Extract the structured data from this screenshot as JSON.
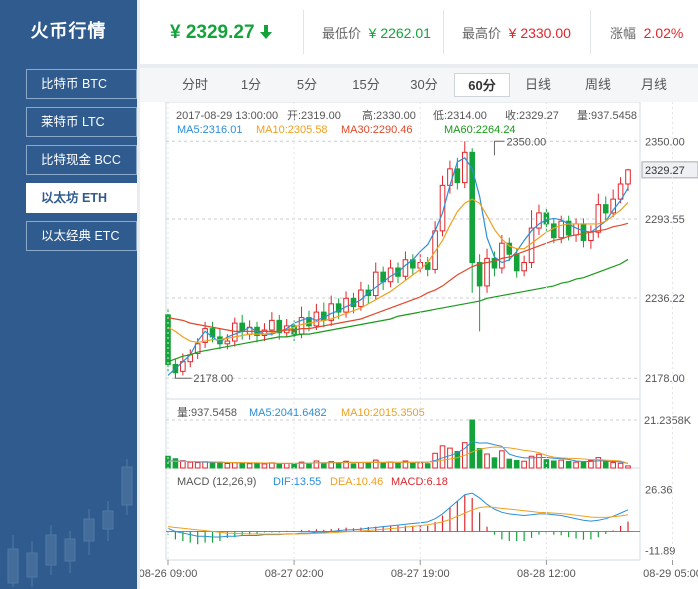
{
  "app": {
    "title": "火币行情"
  },
  "sidebar": {
    "items": [
      {
        "label": "比特币 BTC",
        "active": false
      },
      {
        "label": "莱特币 LTC",
        "active": false
      },
      {
        "label": "比特现金 BCC",
        "active": false
      },
      {
        "label": "以太坊 ETH",
        "active": true
      },
      {
        "label": "以太经典 ETC",
        "active": false
      }
    ]
  },
  "ticker": {
    "currency": "¥",
    "price": "2329.27",
    "direction_icon": "arrow-down-icon",
    "low_label": "最低价",
    "low_value": "¥ 2262.01",
    "high_label": "最高价",
    "high_value": "¥ 2330.00",
    "change_label": "涨幅",
    "change_value": "2.02%"
  },
  "tabs": [
    "分时",
    "1分",
    "5分",
    "15分",
    "30分",
    "60分",
    "日线",
    "周线",
    "月线"
  ],
  "active_tab": "60分",
  "colors": {
    "up": "#e0262c",
    "down": "#14a33a",
    "ma5": "#2a8fd8",
    "ma10": "#f0a01e",
    "ma30": "#e0492a",
    "ma60": "#1a9a1a",
    "dif": "#2a8fd8",
    "dea": "#f0a01e",
    "sidebar": "#2f5b8e"
  },
  "chart_data": [
    {
      "type": "candlestick",
      "info": {
        "time": "2017-08-29 13:00:00",
        "open": "开:2319.00",
        "high": "高:2330.00",
        "low": "低:2314.00",
        "close": "收:2329.27",
        "volume": "量:937.5458"
      },
      "ma_labels": [
        {
          "name": "MA5",
          "text": "MA5:2316.01"
        },
        {
          "name": "MA10",
          "text": "MA10:2305.58"
        },
        {
          "name": "MA30",
          "text": "MA30:2290.46"
        },
        {
          "name": "MA60",
          "text": "MA60:2264.24"
        }
      ],
      "y_ticks": [
        2350.0,
        2293.55,
        2236.22,
        2178.0
      ],
      "y_tick_labels": [
        "2350.00",
        "2293.55",
        "2236.22",
        "2178.00"
      ],
      "ylim": [
        2168,
        2364
      ],
      "last_price_label": "2329.27",
      "max_annotation": {
        "value": 2350.0,
        "label": "2350.00",
        "index": 44
      },
      "min_annotation": {
        "value": 2178.0,
        "label": "2178.00",
        "index": 1
      },
      "x_tick_labels": [
        {
          "label": "08-26 09:00",
          "index": 0
        },
        {
          "label": "08-27 02:00",
          "index": 17
        },
        {
          "label": "08-27 19:00",
          "index": 34
        },
        {
          "label": "08-28 12:00",
          "index": 51
        },
        {
          "label": "08-29 05:00",
          "index": 68
        }
      ],
      "ma_series": [
        {
          "name": "MA5",
          "values": [
            2180,
            2185,
            2190,
            2195,
            2205,
            2212,
            2208,
            2204,
            2208,
            2210,
            2212,
            2215,
            2212,
            2210,
            2210,
            2212,
            2214,
            2218,
            2220,
            2222,
            2220,
            2222,
            2225,
            2227,
            2230,
            2232,
            2235,
            2240,
            2244,
            2248,
            2252,
            2255,
            2260,
            2264,
            2270,
            2275,
            2285,
            2298,
            2318,
            2335,
            2338,
            2330,
            2310,
            2280,
            2266,
            2262,
            2264,
            2270,
            2278,
            2285,
            2290,
            2293,
            2294,
            2293,
            2290,
            2287,
            2285,
            2284,
            2288,
            2292,
            2300,
            2307,
            2316
          ]
        },
        {
          "name": "MA10",
          "values": [
            2215,
            2212,
            2208,
            2205,
            2204,
            2205,
            2206,
            2206,
            2207,
            2208,
            2209,
            2210,
            2210,
            2210,
            2211,
            2212,
            2213,
            2215,
            2217,
            2218,
            2219,
            2220,
            2221,
            2223,
            2225,
            2227,
            2229,
            2232,
            2235,
            2238,
            2241,
            2245,
            2249,
            2253,
            2257,
            2262,
            2270,
            2278,
            2289,
            2299,
            2305,
            2308,
            2305,
            2296,
            2286,
            2279,
            2274,
            2272,
            2272,
            2276,
            2280,
            2284,
            2287,
            2289,
            2290,
            2290,
            2290,
            2290,
            2290,
            2292,
            2296,
            2300,
            2305.58
          ]
        },
        {
          "name": "MA30",
          "values": [
            2222,
            2221,
            2220,
            2218,
            2217,
            2216,
            2215,
            2214,
            2213,
            2212,
            2212,
            2212,
            2212,
            2212,
            2212,
            2212,
            2213,
            2213,
            2214,
            2214,
            2215,
            2216,
            2217,
            2218,
            2219,
            2220,
            2221,
            2223,
            2225,
            2227,
            2229,
            2231,
            2233,
            2235,
            2237,
            2240,
            2242,
            2245,
            2249,
            2253,
            2256,
            2259,
            2261,
            2262,
            2263,
            2265,
            2266,
            2268,
            2270,
            2272,
            2274,
            2276,
            2278,
            2279,
            2281,
            2282,
            2283,
            2284,
            2285,
            2286,
            2288,
            2289,
            2290.46
          ]
        },
        {
          "name": "MA60",
          "values": [
            2190,
            2192,
            2194,
            2195,
            2197,
            2198,
            2199,
            2200,
            2201,
            2202,
            2203,
            2204,
            2205,
            2206,
            2207,
            2208,
            2208,
            2209,
            2210,
            2210,
            2211,
            2212,
            2213,
            2214,
            2215,
            2216,
            2217,
            2218,
            2219,
            2220,
            2221,
            2223,
            2224,
            2225,
            2226,
            2227,
            2228,
            2229,
            2230,
            2231,
            2232,
            2233,
            2234,
            2236,
            2237,
            2238,
            2239,
            2240,
            2241,
            2242,
            2243,
            2244,
            2245,
            2247,
            2248,
            2250,
            2251,
            2253,
            2255,
            2257,
            2259,
            2261,
            2264.24
          ]
        }
      ],
      "candles": [
        {
          "o": 2224,
          "c": 2188,
          "h": 2228,
          "l": 2183
        },
        {
          "o": 2188,
          "c": 2182,
          "h": 2192,
          "l": 2178
        },
        {
          "o": 2183,
          "c": 2190,
          "h": 2196,
          "l": 2180
        },
        {
          "o": 2190,
          "c": 2195,
          "h": 2199,
          "l": 2186
        },
        {
          "o": 2196,
          "c": 2203,
          "h": 2207,
          "l": 2192
        },
        {
          "o": 2204,
          "c": 2214,
          "h": 2219,
          "l": 2200
        },
        {
          "o": 2214,
          "c": 2208,
          "h": 2219,
          "l": 2204
        },
        {
          "o": 2208,
          "c": 2203,
          "h": 2214,
          "l": 2199
        },
        {
          "o": 2203,
          "c": 2205,
          "h": 2210,
          "l": 2199
        },
        {
          "o": 2205,
          "c": 2218,
          "h": 2222,
          "l": 2201
        },
        {
          "o": 2218,
          "c": 2212,
          "h": 2224,
          "l": 2206
        },
        {
          "o": 2210,
          "c": 2215,
          "h": 2220,
          "l": 2206
        },
        {
          "o": 2215,
          "c": 2209,
          "h": 2219,
          "l": 2204
        },
        {
          "o": 2209,
          "c": 2213,
          "h": 2218,
          "l": 2205
        },
        {
          "o": 2213,
          "c": 2220,
          "h": 2226,
          "l": 2209
        },
        {
          "o": 2220,
          "c": 2211,
          "h": 2224,
          "l": 2206
        },
        {
          "o": 2211,
          "c": 2216,
          "h": 2221,
          "l": 2208
        },
        {
          "o": 2216,
          "c": 2210,
          "h": 2220,
          "l": 2205
        },
        {
          "o": 2210,
          "c": 2222,
          "h": 2230,
          "l": 2207
        },
        {
          "o": 2222,
          "c": 2216,
          "h": 2227,
          "l": 2212
        },
        {
          "o": 2216,
          "c": 2226,
          "h": 2232,
          "l": 2213
        },
        {
          "o": 2226,
          "c": 2220,
          "h": 2233,
          "l": 2215
        },
        {
          "o": 2220,
          "c": 2232,
          "h": 2238,
          "l": 2216
        },
        {
          "o": 2232,
          "c": 2226,
          "h": 2236,
          "l": 2221
        },
        {
          "o": 2226,
          "c": 2236,
          "h": 2241,
          "l": 2222
        },
        {
          "o": 2236,
          "c": 2230,
          "h": 2240,
          "l": 2225
        },
        {
          "o": 2230,
          "c": 2242,
          "h": 2248,
          "l": 2227
        },
        {
          "o": 2242,
          "c": 2238,
          "h": 2246,
          "l": 2232
        },
        {
          "o": 2238,
          "c": 2255,
          "h": 2262,
          "l": 2235
        },
        {
          "o": 2255,
          "c": 2248,
          "h": 2259,
          "l": 2242
        },
        {
          "o": 2248,
          "c": 2258,
          "h": 2264,
          "l": 2244
        },
        {
          "o": 2258,
          "c": 2252,
          "h": 2262,
          "l": 2247
        },
        {
          "o": 2252,
          "c": 2264,
          "h": 2270,
          "l": 2249
        },
        {
          "o": 2264,
          "c": 2258,
          "h": 2268,
          "l": 2253
        },
        {
          "o": 2258,
          "c": 2262,
          "h": 2268,
          "l": 2254
        },
        {
          "o": 2262,
          "c": 2257,
          "h": 2266,
          "l": 2252
        },
        {
          "o": 2257,
          "c": 2285,
          "h": 2292,
          "l": 2254
        },
        {
          "o": 2285,
          "c": 2318,
          "h": 2325,
          "l": 2281
        },
        {
          "o": 2318,
          "c": 2330,
          "h": 2336,
          "l": 2312
        },
        {
          "o": 2330,
          "c": 2320,
          "h": 2338,
          "l": 2315
        },
        {
          "o": 2320,
          "c": 2342,
          "h": 2350,
          "l": 2316
        },
        {
          "o": 2342,
          "c": 2262,
          "h": 2345,
          "l": 2240
        },
        {
          "o": 2262,
          "c": 2245,
          "h": 2268,
          "l": 2212
        },
        {
          "o": 2245,
          "c": 2265,
          "h": 2272,
          "l": 2240
        },
        {
          "o": 2265,
          "c": 2258,
          "h": 2270,
          "l": 2252
        },
        {
          "o": 2258,
          "c": 2276,
          "h": 2282,
          "l": 2254
        },
        {
          "o": 2276,
          "c": 2268,
          "h": 2280,
          "l": 2263
        },
        {
          "o": 2268,
          "c": 2256,
          "h": 2272,
          "l": 2251
        },
        {
          "o": 2256,
          "c": 2262,
          "h": 2267,
          "l": 2252
        },
        {
          "o": 2262,
          "c": 2287,
          "h": 2300,
          "l": 2258
        },
        {
          "o": 2287,
          "c": 2298,
          "h": 2304,
          "l": 2282
        },
        {
          "o": 2298,
          "c": 2290,
          "h": 2302,
          "l": 2285
        },
        {
          "o": 2290,
          "c": 2280,
          "h": 2294,
          "l": 2276
        },
        {
          "o": 2280,
          "c": 2292,
          "h": 2296,
          "l": 2276
        },
        {
          "o": 2292,
          "c": 2282,
          "h": 2296,
          "l": 2278
        },
        {
          "o": 2282,
          "c": 2290,
          "h": 2294,
          "l": 2277
        },
        {
          "o": 2290,
          "c": 2278,
          "h": 2294,
          "l": 2273
        },
        {
          "o": 2278,
          "c": 2284,
          "h": 2289,
          "l": 2272
        },
        {
          "o": 2284,
          "c": 2304,
          "h": 2312,
          "l": 2280
        },
        {
          "o": 2304,
          "c": 2298,
          "h": 2310,
          "l": 2292
        },
        {
          "o": 2298,
          "c": 2308,
          "h": 2315,
          "l": 2295
        },
        {
          "o": 2308,
          "c": 2319,
          "h": 2324,
          "l": 2305
        },
        {
          "o": 2319,
          "c": 2329.27,
          "h": 2330,
          "l": 2314
        }
      ]
    },
    {
      "type": "bar",
      "labels": {
        "volume": "量:937.5458",
        "ma5": "MA5:2041.6482",
        "ma10": "MA10:2015.3505"
      },
      "y_tick_label": "21.2358K",
      "ylim": [
        0,
        21235.8
      ],
      "values": [
        5200,
        4100,
        3200,
        2600,
        2400,
        2800,
        2200,
        2600,
        2000,
        2400,
        2200,
        1900,
        2100,
        1800,
        2300,
        1600,
        2000,
        1700,
        2600,
        1900,
        3100,
        2000,
        2800,
        2200,
        3000,
        1800,
        2400,
        2100,
        3500,
        2200,
        2600,
        2000,
        3100,
        2400,
        2300,
        1900,
        6500,
        9800,
        8800,
        7300,
        11200,
        21235,
        8600,
        6200,
        4500,
        7600,
        3900,
        3300,
        3000,
        5200,
        6100,
        3700,
        3100,
        3500,
        2900,
        2600,
        2500,
        3300,
        4600,
        2700,
        2400,
        2100,
        937.5458
      ],
      "ma5": [
        3200,
        3100,
        3000,
        2900,
        2700,
        2600,
        2500,
        2500,
        2400,
        2300,
        2300,
        2200,
        2200,
        2100,
        2100,
        2000,
        2000,
        2000,
        2100,
        2100,
        2300,
        2300,
        2400,
        2400,
        2600,
        2500,
        2500,
        2500,
        2600,
        2500,
        2600,
        2500,
        2600,
        2500,
        2600,
        2500,
        3300,
        4500,
        5500,
        6700,
        8700,
        11700,
        11000,
        11100,
        10300,
        9600,
        6100,
        5100,
        4500,
        4500,
        4600,
        4700,
        4300,
        4200,
        3800,
        3100,
        2900,
        2900,
        3200,
        3100,
        2900,
        2700,
        2041.6482
      ],
      "ma10": [
        3000,
        3000,
        2900,
        2900,
        2800,
        2800,
        2700,
        2600,
        2500,
        2400,
        2400,
        2300,
        2300,
        2200,
        2200,
        2100,
        2100,
        2100,
        2100,
        2100,
        2200,
        2200,
        2300,
        2300,
        2400,
        2400,
        2400,
        2500,
        2500,
        2500,
        2500,
        2500,
        2500,
        2500,
        2600,
        2600,
        2900,
        3500,
        4000,
        4600,
        5600,
        7100,
        8300,
        8900,
        9300,
        9200,
        8900,
        8400,
        7800,
        7400,
        6800,
        5600,
        4800,
        4500,
        4300,
        4200,
        4000,
        3700,
        3700,
        3500,
        3300,
        3100,
        2015.3505
      ]
    },
    {
      "type": "bar",
      "title": "MACD (12,26,9)",
      "labels": {
        "dif": "DIF:13.55",
        "dea": "DEA:10.46",
        "macd": "MACD:6.18"
      },
      "y_ticks": [
        26.36,
        -11.89
      ],
      "y_tick_labels": [
        "26.36",
        "-11.89"
      ],
      "ylim": [
        -16,
        31
      ],
      "dif": [
        2,
        0,
        -1,
        -2,
        -3,
        -3,
        -3.5,
        -3.5,
        -3,
        -3,
        -2.5,
        -2.5,
        -2.5,
        -2,
        -2,
        -2,
        -1.5,
        -1.5,
        -1,
        -1,
        -0.5,
        -0.5,
        0,
        0.5,
        1,
        1,
        1.5,
        2,
        2.5,
        3,
        3.5,
        4,
        4.5,
        5,
        5.5,
        6,
        8,
        11,
        15,
        19,
        23,
        24,
        21,
        17,
        14,
        12,
        11,
        10.5,
        10,
        10.5,
        11,
        11,
        10.5,
        10,
        9,
        8,
        7,
        6.5,
        7,
        8,
        9.5,
        11.5,
        13.55
      ],
      "dea": [
        3,
        2.5,
        2,
        1.5,
        1,
        0.5,
        0,
        -0.5,
        -1,
        -1.2,
        -1.4,
        -1.5,
        -1.6,
        -1.7,
        -1.7,
        -1.7,
        -1.7,
        -1.6,
        -1.5,
        -1.4,
        -1.2,
        -1,
        -0.8,
        -0.5,
        -0.2,
        0,
        0.3,
        0.6,
        1,
        1.4,
        1.8,
        2.2,
        2.7,
        3.2,
        3.7,
        4.2,
        5,
        6,
        7.5,
        9.5,
        11.5,
        13.5,
        15,
        15.5,
        15,
        14.5,
        14,
        13.5,
        13,
        12.5,
        12,
        11.8,
        11.5,
        11.2,
        10.8,
        10.2,
        9.6,
        9,
        8.8,
        8.8,
        9.2,
        9.8,
        10.46
      ],
      "macd": [
        -2,
        -5,
        -6,
        -7,
        -8,
        -7,
        -7,
        -6,
        -4,
        -3.6,
        -2.2,
        -2,
        -1.8,
        -0.6,
        -0.6,
        -0.6,
        0.4,
        0.2,
        1,
        0.8,
        1.4,
        1,
        1.6,
        2,
        2.4,
        2,
        2.4,
        2.8,
        3,
        3.2,
        3.4,
        3.6,
        3.6,
        3.6,
        3.6,
        3.6,
        6,
        10,
        15,
        19,
        23,
        21,
        12,
        3,
        -2,
        -5,
        -6,
        -6,
        -6,
        -4,
        -2,
        -1.6,
        -2,
        -2.4,
        -3.6,
        -4.4,
        -5.2,
        -5,
        -3.6,
        -1.6,
        0.6,
        3.4,
        6.18
      ]
    }
  ]
}
